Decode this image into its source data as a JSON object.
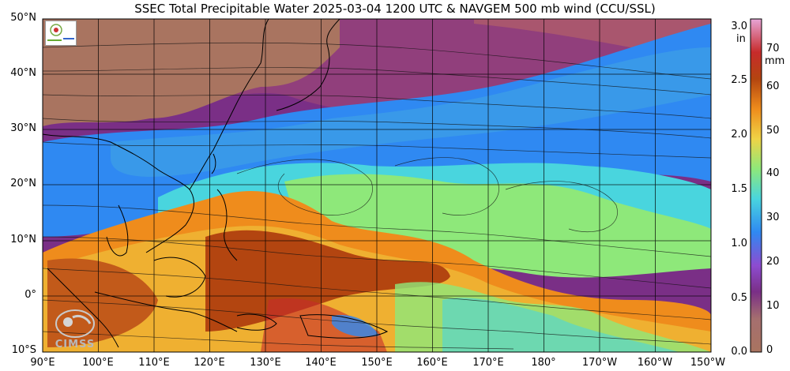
{
  "title": "SSEC Total Precipitable Water  2025-03-04 1200 UTC & NAVGEM 500 mb wind (CCU/SSL)",
  "latitude_labels": [
    "50°N",
    "40°N",
    "30°N",
    "20°N",
    "10°N",
    "0°",
    "10°S"
  ],
  "longitude_labels": [
    "90°E",
    "100°E",
    "110°E",
    "120°E",
    "130°E",
    "140°E",
    "150°E",
    "160°E",
    "170°E",
    "180°",
    "170°W",
    "160°W",
    "150°W"
  ],
  "colorbar": {
    "unit_in": "in",
    "unit_mm": "mm",
    "inch_ticks": [
      "3.0",
      "2.5",
      "2.0",
      "1.5",
      "1.0",
      "0.5",
      "0.0"
    ],
    "mm_ticks": [
      "70",
      "60",
      "50",
      "40",
      "30",
      "20",
      "10",
      "0"
    ]
  },
  "watermark": "CIMSS",
  "colors": {
    "very_dry": "#a97460",
    "dry": "#7a2f86",
    "moist_low": "#8d4cd0",
    "blue": "#2f89f2",
    "cyan": "#49d5de",
    "green": "#8ee87a",
    "yellow": "#efd346",
    "orange": "#ef8c1c",
    "dark_orange": "#b34510",
    "red": "#c72b2b",
    "pink": "#e7a5d6"
  }
}
